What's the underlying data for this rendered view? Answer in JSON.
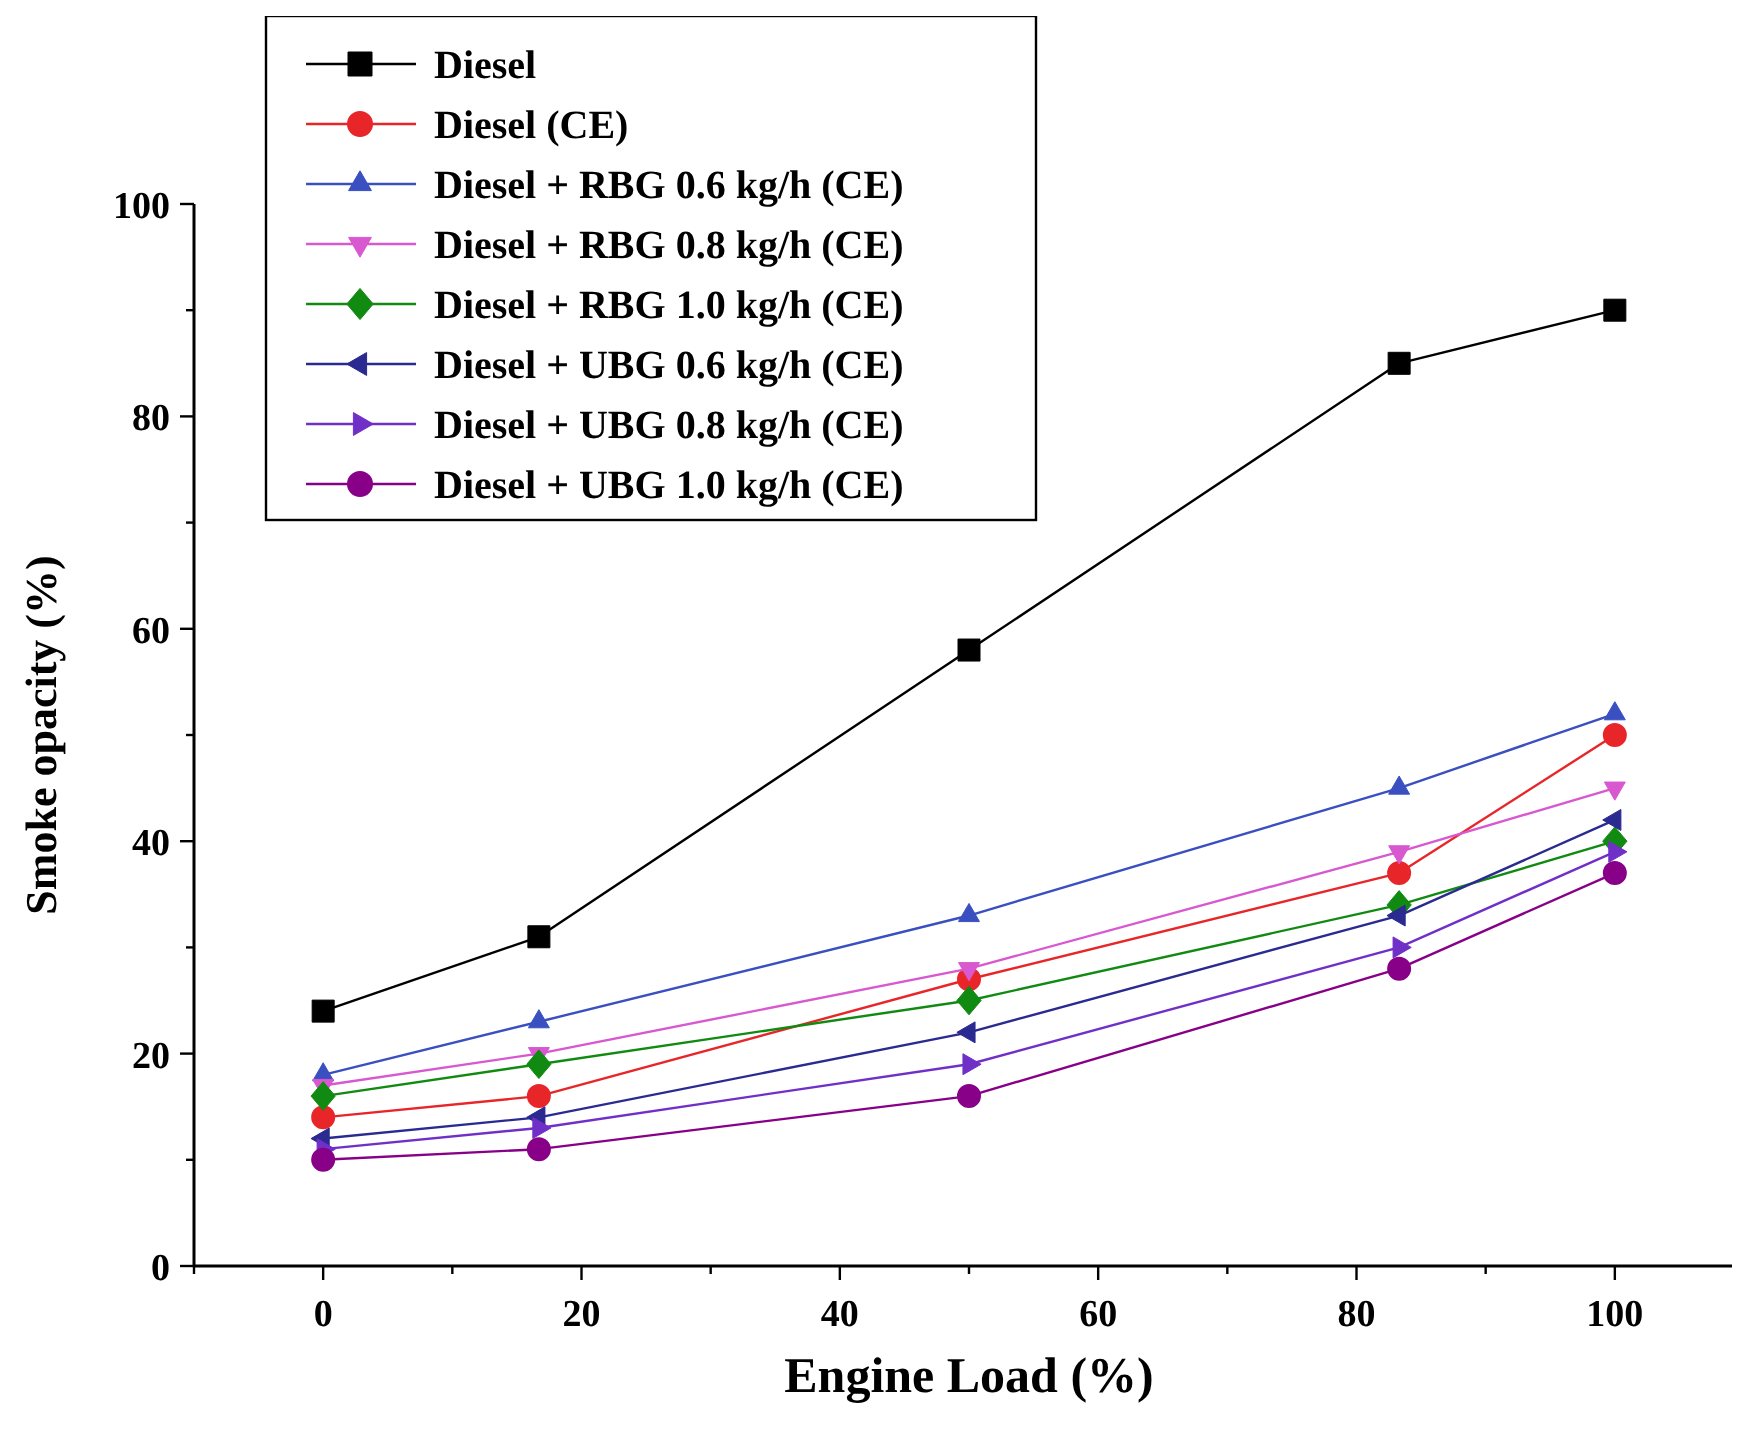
{
  "chart_data": {
    "type": "line",
    "xlabel": "Engine Load (%)",
    "ylabel": "Smoke opacity (%)",
    "x": [
      0,
      16.7,
      50,
      83.3,
      100
    ],
    "xlim": [
      -10,
      110
    ],
    "xticks": [
      {
        "value": -10,
        "label": null
      },
      0,
      {
        "value": 10,
        "label": null
      },
      20,
      {
        "value": 30,
        "label": null
      },
      40,
      {
        "value": 50,
        "label": null
      },
      60,
      {
        "value": 70,
        "label": null
      },
      80,
      {
        "value": 90,
        "label": null
      },
      100
    ],
    "ylim": [
      0,
      100
    ],
    "yticks": [
      0,
      {
        "value": 10,
        "label": null
      },
      20,
      {
        "value": 30,
        "label": null
      },
      40,
      {
        "value": 50,
        "label": null
      },
      60,
      {
        "value": 70,
        "label": null
      },
      80,
      {
        "value": 90,
        "label": null
      },
      100
    ],
    "grid": false,
    "legend": "top left",
    "line_style": "solid",
    "series": [
      {
        "name": "Diesel",
        "color": "#000000",
        "marker": "square",
        "values": [
          24,
          31,
          58,
          85,
          90
        ]
      },
      {
        "name": "Diesel (CE)",
        "color": "#e8262a",
        "marker": "circle",
        "values": [
          14,
          16,
          27,
          37,
          50
        ]
      },
      {
        "name": "Diesel + RBG 0.6 kg/h (CE)",
        "color": "#3a4fc0",
        "marker": "triangle",
        "values": [
          18,
          23,
          33,
          45,
          52
        ]
      },
      {
        "name": "Diesel + RBG 0.8 kg/h (CE)",
        "color": "#d858d0",
        "marker": "triangle-down",
        "values": [
          17,
          20,
          28,
          39,
          45
        ]
      },
      {
        "name": "Diesel + RBG 1.0 kg/h (CE)",
        "color": "#118a11",
        "marker": "diamond",
        "values": [
          16,
          19,
          25,
          34,
          40
        ]
      },
      {
        "name": "Diesel + UBG 0.6 kg/h (CE)",
        "color": "#2a2a90",
        "marker": "triangle-left",
        "values": [
          12,
          14,
          22,
          33,
          42
        ]
      },
      {
        "name": "Diesel + UBG 0.8 kg/h (CE)",
        "color": "#7030c8",
        "marker": "triangle-right",
        "values": [
          11,
          13,
          19,
          30,
          39
        ]
      },
      {
        "name": "Diesel + UBG 1.0 kg/h (CE)",
        "color": "#880088",
        "marker": "circle",
        "values": [
          10,
          11,
          16,
          28,
          37
        ]
      }
    ]
  }
}
